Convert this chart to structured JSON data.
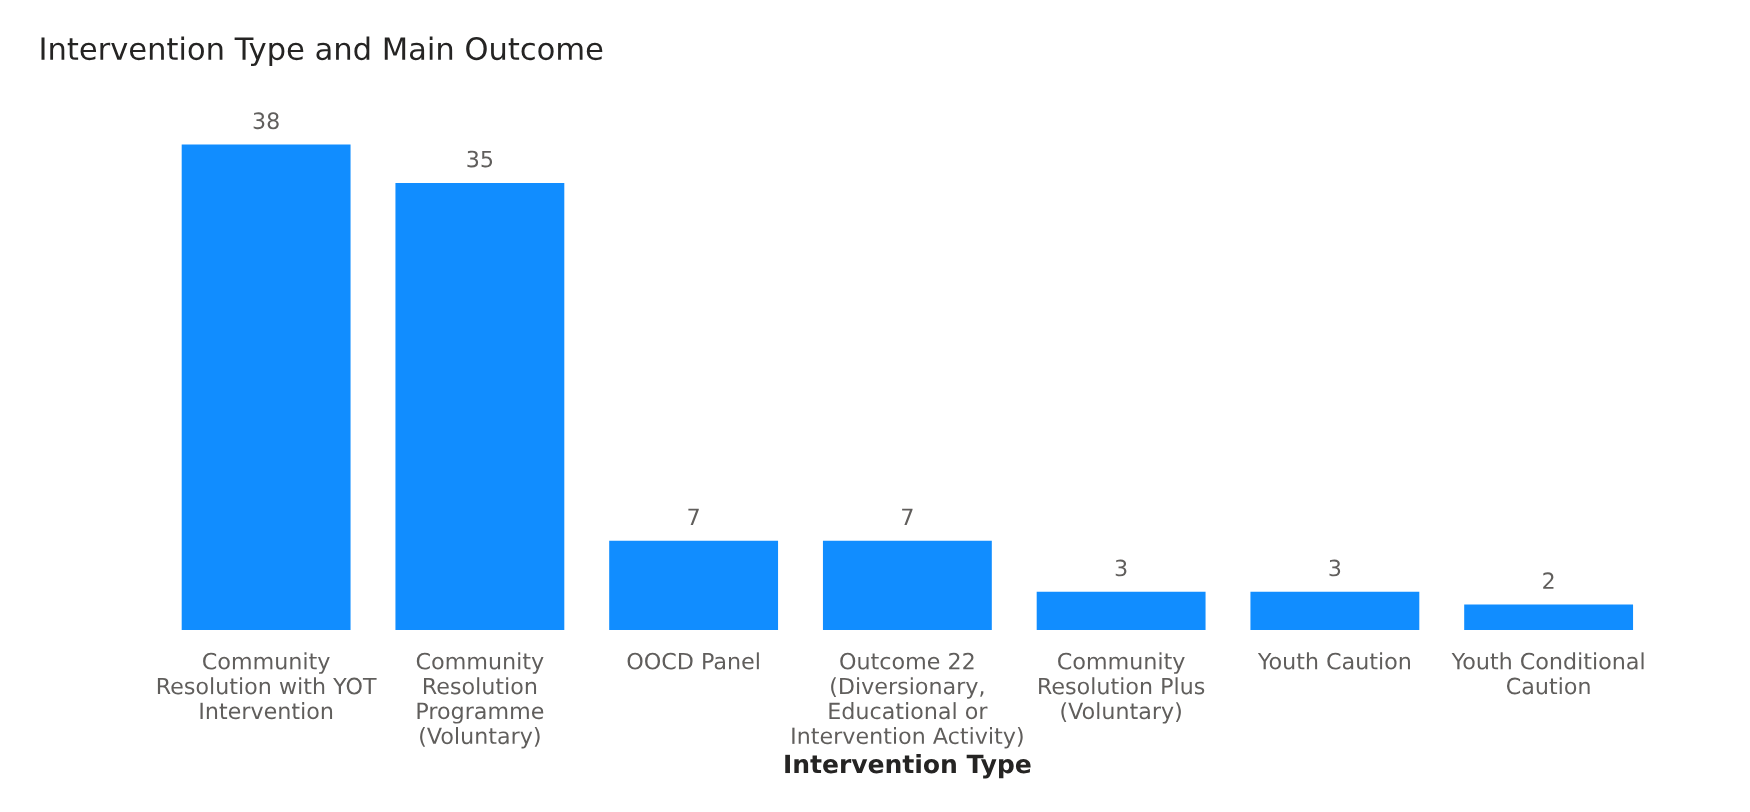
{
  "chart_data": {
    "type": "bar",
    "title": "Intervention Type and Main Outcome",
    "xlabel": "Intervention Type",
    "categories": [
      "Community\nResolution with YOT\nIntervention",
      "Community\nResolution\nProgramme\n(Voluntary)",
      "OOCD Panel",
      "Outcome 22\n(Diversionary,\nEducational or\nIntervention Activity)",
      "Community\nResolution Plus\n(Voluntary)",
      "Youth Caution",
      "Youth Conditional\nCaution"
    ],
    "values": [
      38,
      35,
      7,
      7,
      3,
      3,
      2
    ],
    "color": "#118dff",
    "data_labels": true,
    "grid": false,
    "legend": false
  }
}
